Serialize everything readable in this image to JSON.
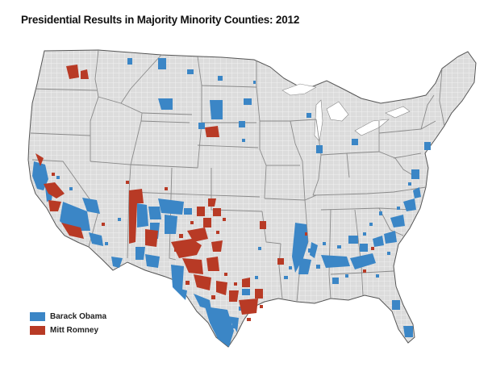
{
  "title": "Presidential Results in Majority Minority Counties: 2012",
  "legend": [
    {
      "label": "Barack Obama",
      "color": "#3b86c6"
    },
    {
      "label": "Mitt Romney",
      "color": "#b83a25"
    }
  ],
  "colors": {
    "land": "#dcdcdc",
    "county_lines": "#ffffff",
    "state_lines": "#8a8a8a",
    "coast": "#555555"
  }
}
